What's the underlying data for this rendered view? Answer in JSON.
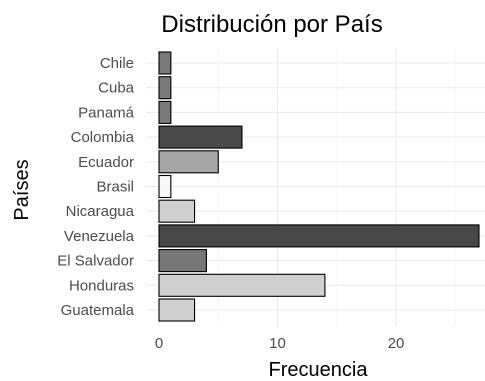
{
  "chart_data": {
    "type": "bar",
    "orientation": "horizontal",
    "title": "Distribución por  País",
    "xlabel": "Frecuencia",
    "ylabel": "Países",
    "categories": [
      "Chile",
      "Cuba",
      "Panamá",
      "Colombia",
      "Ecuador",
      "Brasil",
      "Nicaragua",
      "Venezuela",
      "El Salvador",
      "Honduras",
      "Guatemala"
    ],
    "values": [
      1,
      1,
      1,
      7,
      5,
      1,
      3,
      27,
      4,
      14,
      3
    ],
    "colors": [
      "#7a7a7a",
      "#7a7a7a",
      "#7a7a7a",
      "#4a4a4a",
      "#a6a6a6",
      "#f7f7f7",
      "#cfcfcf",
      "#474747",
      "#777777",
      "#cfcfcf",
      "#cfcfcf"
    ],
    "xlim": [
      0,
      27
    ],
    "xticks": [
      0,
      10,
      20
    ],
    "grid": true,
    "legend": "none"
  }
}
